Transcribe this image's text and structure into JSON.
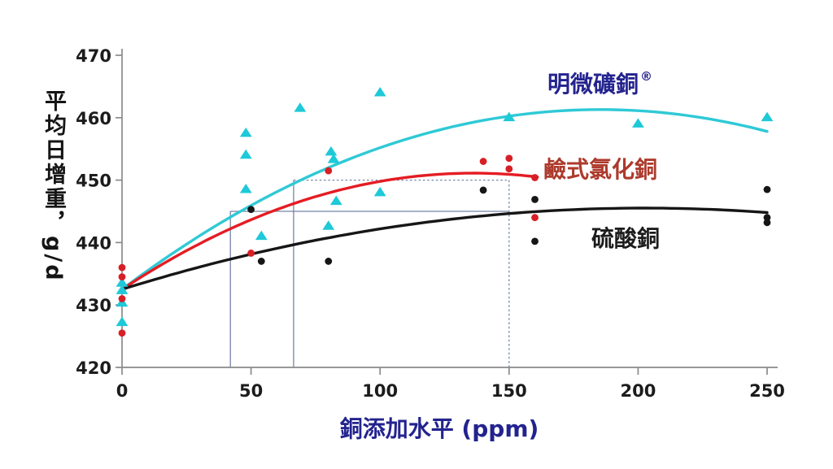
{
  "chart_data": {
    "type": "scatter",
    "title": "",
    "xlabel": "銅添加水平 (ppm)",
    "ylabel": "平均日增重，g/d",
    "x_ticks": [
      "0",
      "50",
      "100",
      "150",
      "200",
      "250"
    ],
    "x_tick_values": [
      0,
      50,
      100,
      150,
      200,
      250
    ],
    "y_ticks": [
      "420",
      "430",
      "440",
      "450",
      "460",
      "470"
    ],
    "y_tick_values": [
      420,
      430,
      440,
      450,
      460,
      470
    ],
    "xlim": [
      0,
      250
    ],
    "ylim": [
      420,
      470
    ],
    "grid": false,
    "axis_color": "#8a8a8a",
    "label_color": "#23238f",
    "series": [
      {
        "name": "明微礦銅",
        "registered_mark": "®",
        "marker": "triangle",
        "color": "#1ec9d8",
        "curve_color": "#2fc9d6",
        "curve_points": {
          "start": [
            0,
            432.5
          ],
          "peak": [
            185,
            461.3
          ],
          "end": [
            250,
            457.8
          ]
        },
        "points": [
          [
            0,
            433.5
          ],
          [
            0,
            432.3
          ],
          [
            0,
            430.3
          ],
          [
            0,
            427.2
          ],
          [
            48,
            457.5
          ],
          [
            48,
            454
          ],
          [
            48,
            448.5
          ],
          [
            54,
            441
          ],
          [
            69,
            461.5
          ],
          [
            81,
            454.5
          ],
          [
            82,
            453.3
          ],
          [
            80,
            442.6
          ],
          [
            83,
            446.6
          ],
          [
            100,
            464
          ],
          [
            100,
            448
          ],
          [
            150,
            460
          ],
          [
            200,
            459
          ],
          [
            250,
            460
          ]
        ]
      },
      {
        "name": "鹼式氯化銅",
        "marker": "circle",
        "color": "#d81f26",
        "curve_color": "#e51c23",
        "curve_points": {
          "start": [
            0,
            432.5
          ],
          "peak": [
            140,
            451.1
          ],
          "end": [
            161,
            450.5
          ]
        },
        "points": [
          [
            0,
            436
          ],
          [
            0,
            434.5
          ],
          [
            0,
            431
          ],
          [
            0,
            425.5
          ],
          [
            50,
            438.3
          ],
          [
            80,
            451.5
          ],
          [
            140,
            453
          ],
          [
            150,
            453.5
          ],
          [
            150,
            451.8
          ],
          [
            160,
            450.4
          ],
          [
            160,
            444
          ]
        ]
      },
      {
        "name": "硫酸銅",
        "marker": "circle",
        "color": "#161616",
        "curve_color": "#161616",
        "curve_points": {
          "start": [
            0,
            432.5
          ],
          "peak": [
            195,
            445.5
          ],
          "end": [
            250,
            444.8
          ]
        },
        "points": [
          [
            50,
            445.3
          ],
          [
            54,
            437
          ],
          [
            80,
            437
          ],
          [
            140,
            448.4
          ],
          [
            160,
            446.9
          ],
          [
            160,
            440.2
          ],
          [
            250,
            448.5
          ],
          [
            250,
            444
          ],
          [
            250,
            443.2
          ]
        ]
      }
    ],
    "reference_lines": {
      "color": "#7585a8",
      "lines": [
        {
          "orient": "v",
          "at": 42,
          "from": 420,
          "to": 445,
          "style": "solid"
        },
        {
          "orient": "v",
          "at": 66.5,
          "from": 420,
          "to": 450,
          "style": "solid"
        },
        {
          "orient": "v",
          "at": 150,
          "from": 420,
          "to": 450,
          "style": "dotted"
        },
        {
          "orient": "h",
          "at": 445,
          "from": 42,
          "to": 150,
          "style": "solid"
        },
        {
          "orient": "h",
          "at": 450,
          "from": 66.5,
          "to": 150,
          "style": "dotted"
        }
      ]
    },
    "legend": [
      {
        "label": "明微礦銅",
        "suffix": "®",
        "color": "#23238f"
      },
      {
        "label": "鹼式氯化銅",
        "suffix": "",
        "color": "#ad3a2c"
      },
      {
        "label": "硫酸銅",
        "suffix": "",
        "color": "#1c1c1c"
      }
    ]
  }
}
